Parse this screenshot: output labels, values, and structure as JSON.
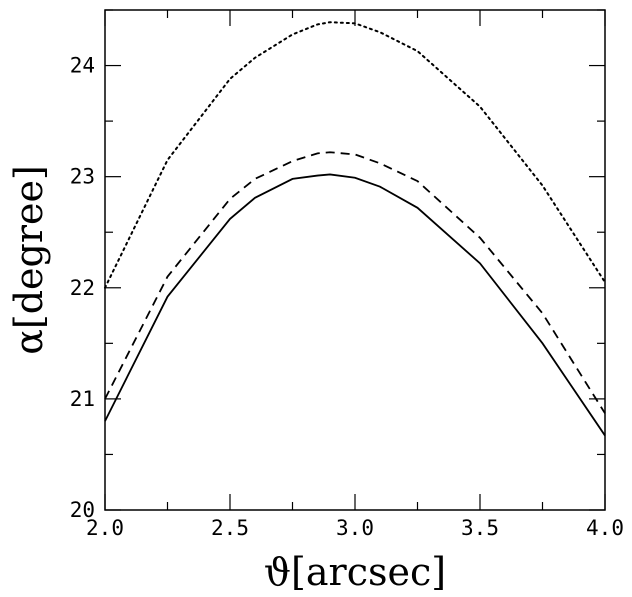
{
  "chart_data": {
    "type": "line",
    "title": "",
    "xlabel": "ϑ[arcsec]",
    "ylabel": "α[degree]",
    "xlim": [
      2.0,
      4.0
    ],
    "ylim": [
      20,
      24.5
    ],
    "x_ticks": [
      "2.0",
      "2.5",
      "3.0",
      "3.5",
      "4.0"
    ],
    "y_ticks": [
      "20",
      "21",
      "22",
      "23",
      "24"
    ],
    "grid": false,
    "legend": "none",
    "series": [
      {
        "style": "dotted",
        "x": [
          2.0,
          2.25,
          2.5,
          2.6,
          2.75,
          2.85,
          2.9,
          3.0,
          3.1,
          3.25,
          3.5,
          3.75,
          4.0
        ],
        "y": [
          22.0,
          23.15,
          23.88,
          24.07,
          24.28,
          24.37,
          24.39,
          24.38,
          24.3,
          24.13,
          23.63,
          22.92,
          22.05
        ]
      },
      {
        "style": "dashed",
        "x": [
          2.0,
          2.25,
          2.5,
          2.6,
          2.75,
          2.85,
          2.9,
          3.0,
          3.1,
          3.25,
          3.5,
          3.75,
          4.0
        ],
        "y": [
          21.0,
          22.1,
          22.8,
          22.98,
          23.14,
          23.21,
          23.22,
          23.2,
          23.12,
          22.96,
          22.45,
          21.77,
          20.87
        ]
      },
      {
        "style": "solid",
        "x": [
          2.0,
          2.25,
          2.5,
          2.6,
          2.75,
          2.85,
          2.9,
          3.0,
          3.1,
          3.25,
          3.5,
          3.75,
          4.0
        ],
        "y": [
          20.8,
          21.92,
          22.62,
          22.81,
          22.98,
          23.01,
          23.02,
          22.99,
          22.91,
          22.72,
          22.22,
          21.5,
          20.67
        ]
      }
    ]
  }
}
